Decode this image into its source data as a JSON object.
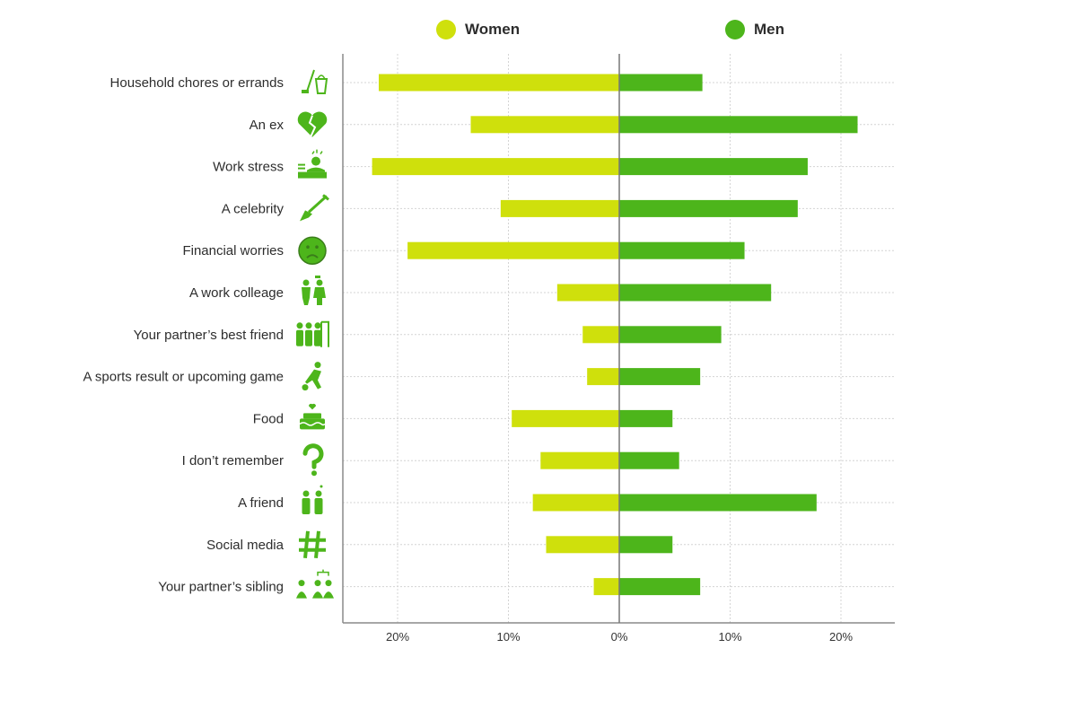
{
  "chart_data": {
    "type": "bar",
    "orientation": "horizontal-diverging",
    "title": "",
    "xlabel": "",
    "ylabel": "",
    "xlim": [
      -25,
      25
    ],
    "grid": true,
    "legend_position": "top",
    "categories": [
      "Household chores or errands",
      "An ex",
      "Work stress",
      "A celebrity",
      "Financial worries",
      "A work colleage",
      "Your partner’s best friend",
      "A sports result or upcoming game",
      "Food",
      "I don’t remember",
      "A friend",
      "Social media",
      "Your partner’s sibling"
    ],
    "icons": [
      "mop-and-bucket-icon",
      "broken-heart-icon",
      "stressed-worker-at-desk-icon",
      "guitar-icon",
      "sad-face-icon",
      "colleagues-icon",
      "group-of-friends-icon",
      "footballer-icon",
      "cake-icon",
      "question-mark-icon",
      "two-friends-icon",
      "hashtag-icon",
      "family-tree-icon"
    ],
    "series": [
      {
        "name": "Women",
        "color": "#cfe00c",
        "values": [
          21.7,
          13.4,
          22.3,
          10.7,
          19.1,
          5.6,
          3.3,
          2.9,
          9.7,
          7.1,
          7.8,
          6.6,
          2.3
        ]
      },
      {
        "name": "Men",
        "color": "#4db51b",
        "values": [
          7.5,
          21.5,
          17.0,
          16.1,
          11.3,
          13.7,
          9.2,
          7.3,
          4.8,
          5.4,
          17.8,
          4.8,
          7.3
        ]
      }
    ],
    "x_ticks": [
      {
        "value": -20,
        "label": "20%"
      },
      {
        "value": -10,
        "label": "10%"
      },
      {
        "value": 0,
        "label": "0%"
      },
      {
        "value": 10,
        "label": "10%"
      },
      {
        "value": 20,
        "label": "20%"
      }
    ]
  }
}
